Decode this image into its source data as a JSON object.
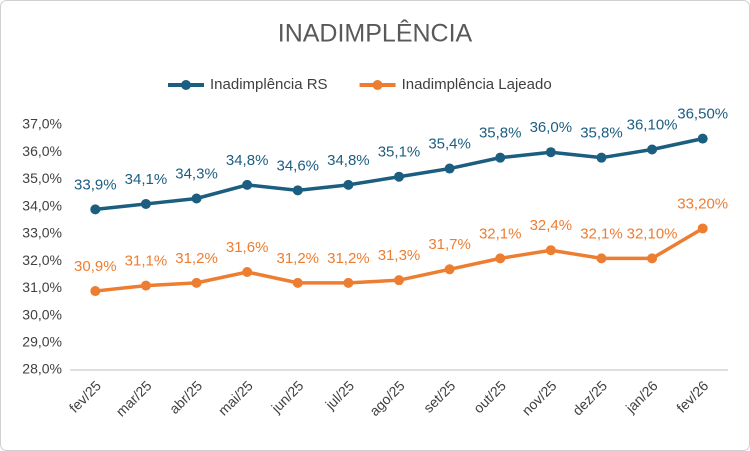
{
  "chart_data": {
    "type": "line",
    "title": "INADIMPLÊNCIA",
    "categories": [
      "fev/25",
      "mar/25",
      "abr/25",
      "mai/25",
      "jun/25",
      "jul/25",
      "ago/25",
      "set/25",
      "out/25",
      "nov/25",
      "dez/25",
      "jan/26",
      "fev/26"
    ],
    "series": [
      {
        "name": "Inadimplência RS",
        "color": "#1b5e80",
        "values": [
          33.9,
          34.1,
          34.3,
          34.8,
          34.6,
          34.8,
          35.1,
          35.4,
          35.8,
          36.0,
          35.8,
          36.1,
          36.5
        ],
        "value_labels": [
          "33,9%",
          "34,1%",
          "34,3%",
          "34,8%",
          "34,6%",
          "34,8%",
          "35,1%",
          "35,4%",
          "35,8%",
          "36,0%",
          "35,8%",
          "36,10%",
          "36,50%"
        ]
      },
      {
        "name": "Inadimplência Lajeado",
        "color": "#ed7d31",
        "values": [
          30.9,
          31.1,
          31.2,
          31.6,
          31.2,
          31.2,
          31.3,
          31.7,
          32.1,
          32.4,
          32.1,
          32.1,
          33.2
        ],
        "value_labels": [
          "30,9%",
          "31,1%",
          "31,2%",
          "31,6%",
          "31,2%",
          "31,2%",
          "31,3%",
          "31,7%",
          "32,1%",
          "32,4%",
          "32,1%",
          "32,10%",
          "33,20%"
        ]
      }
    ],
    "ylim": [
      28,
      37
    ],
    "yticks": [
      {
        "value": 28,
        "label": "28,0%"
      },
      {
        "value": 29,
        "label": "29,0%"
      },
      {
        "value": 30,
        "label": "30,0%"
      },
      {
        "value": 31,
        "label": "31,0%"
      },
      {
        "value": 32,
        "label": "32,0%"
      },
      {
        "value": 33,
        "label": "33,0%"
      },
      {
        "value": 34,
        "label": "34,0%"
      },
      {
        "value": 35,
        "label": "35,0%"
      },
      {
        "value": 36,
        "label": "36,0%"
      },
      {
        "value": 37,
        "label": "37,0%"
      }
    ],
    "grid": false
  }
}
